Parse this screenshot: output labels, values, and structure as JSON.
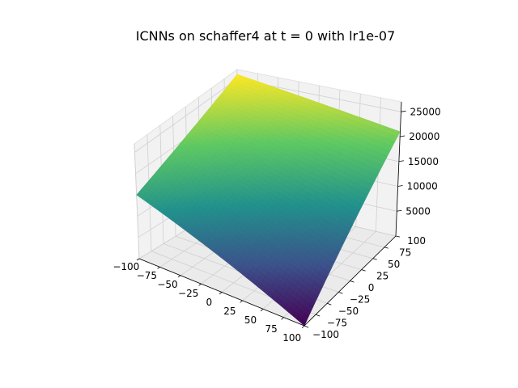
{
  "chart_data": {
    "type": "surface3d",
    "title": "ICNNs on schaffer4 at t = 0 with lr1e-07",
    "xlabel": "",
    "ylabel": "",
    "zlabel": "",
    "x_range": [
      -100,
      100
    ],
    "y_range": [
      -100,
      100
    ],
    "z_range": [
      0,
      27000
    ],
    "x_ticks": [
      "−100",
      "−75",
      "−50",
      "−25",
      "0",
      "25",
      "50",
      "75",
      "100"
    ],
    "y_ticks": [
      "−100",
      "−75",
      "−50",
      "−25",
      "0",
      "25",
      "50",
      "75",
      "100"
    ],
    "z_ticks": [
      "5000",
      "10000",
      "15000",
      "20000",
      "25000"
    ],
    "corner_values": {
      "x_-100_y_-100": 15000,
      "x_-100_y_100": 26000,
      "x_100_y_100": 21000,
      "x_100_y_-100": 0
    },
    "colormap": "viridis",
    "colormap_stops": [
      "#440154",
      "#3b528b",
      "#21918c",
      "#5ec962",
      "#fde725"
    ],
    "grid": true,
    "pane_color": "#f2f2f2",
    "grid_color": "#d0d0d0"
  }
}
